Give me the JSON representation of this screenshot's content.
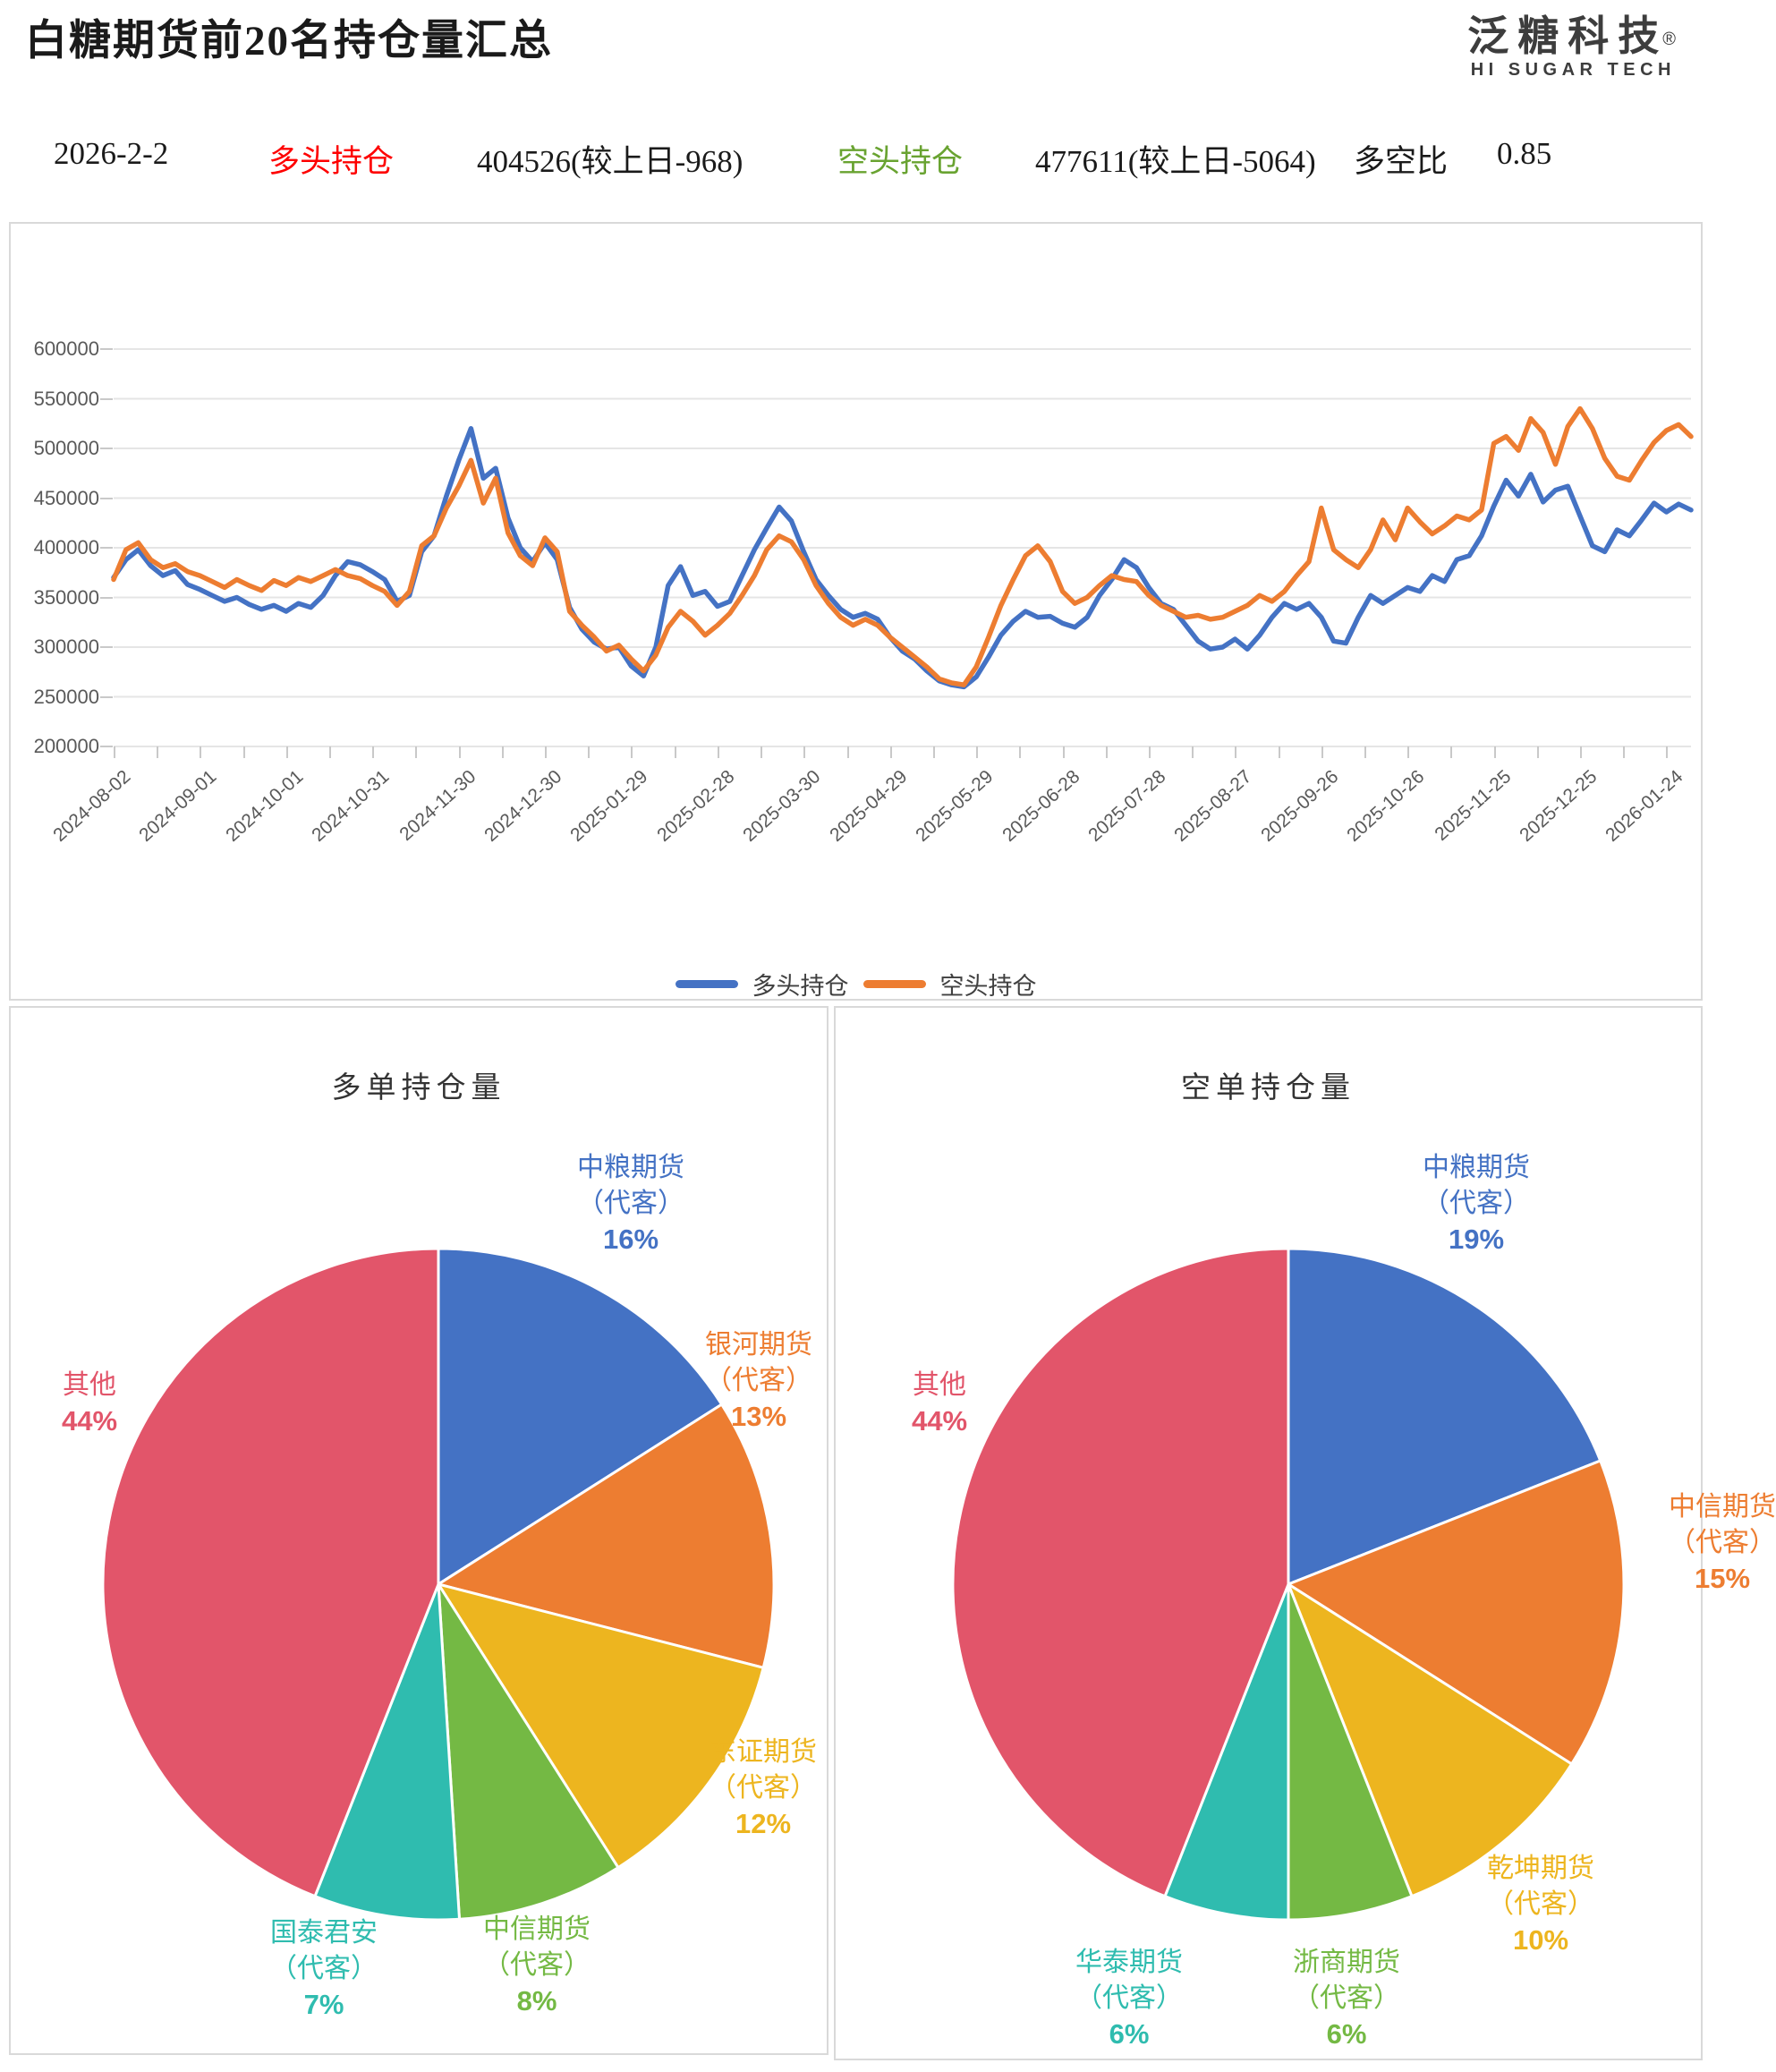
{
  "header": {
    "title": "白糖期货前20名持仓量汇总",
    "logo_cn": "泛糖科技",
    "logo_reg": "®",
    "logo_en": "HI SUGAR TECH"
  },
  "info_bar": {
    "date": "2026-2-2",
    "long_label": "多头持仓",
    "long_value": "404526(较上日-968)",
    "short_label": "空头持仓",
    "short_value": "477611(较上日-5064)",
    "ratio_label": "多空比",
    "ratio_value": "0.85"
  },
  "colors": {
    "blue": "#4472C4",
    "orange": "#ED7D31",
    "yellow": "#EDB51F",
    "green": "#74B944",
    "teal": "#2FBCAF",
    "red": "#E2556A",
    "grid": "#E5E5E5",
    "axis_text": "#595959",
    "panel_border": "#D9D9D9"
  },
  "chart_data": [
    {
      "type": "line",
      "ylim": [
        200000,
        600000
      ],
      "ytick_step": 50000,
      "grid": true,
      "legend_position": "bottom",
      "x_tick_labels": [
        "2024-08-02",
        "2024-09-01",
        "2024-10-01",
        "2024-10-31",
        "2024-11-30",
        "2024-12-30",
        "2025-01-29",
        "2025-02-28",
        "2025-03-30",
        "2025-04-29",
        "2025-05-29",
        "2025-06-28",
        "2025-07-28",
        "2025-08-27",
        "2025-09-26",
        "2025-10-26",
        "2025-11-25",
        "2025-12-25",
        "2026-01-24"
      ],
      "series": [
        {
          "name": "多头持仓",
          "color": "#4472C4",
          "values": [
            370000,
            388000,
            398000,
            382000,
            372000,
            377000,
            363000,
            358000,
            352000,
            346000,
            350000,
            343000,
            338000,
            342000,
            336000,
            344000,
            340000,
            352000,
            372000,
            386000,
            383000,
            376000,
            368000,
            346000,
            352000,
            396000,
            412000,
            452000,
            488000,
            520000,
            470000,
            480000,
            430000,
            400000,
            386000,
            405000,
            388000,
            340000,
            318000,
            305000,
            298000,
            300000,
            281000,
            271000,
            300000,
            362000,
            381000,
            352000,
            356000,
            341000,
            346000,
            372000,
            398000,
            420000,
            441000,
            427000,
            396000,
            368000,
            352000,
            338000,
            330000,
            334000,
            328000,
            310000,
            296000,
            288000,
            276000,
            266000,
            262000,
            260000,
            270000,
            290000,
            312000,
            326000,
            336000,
            330000,
            331000,
            324000,
            320000,
            330000,
            352000,
            368000,
            388000,
            380000,
            360000,
            344000,
            338000,
            322000,
            306000,
            298000,
            300000,
            308000,
            298000,
            312000,
            330000,
            344000,
            338000,
            344000,
            330000,
            306000,
            304000,
            330000,
            352000,
            344000,
            352000,
            360000,
            356000,
            372000,
            366000,
            388000,
            392000,
            412000,
            442000,
            468000,
            452000,
            474000,
            446000,
            458000,
            462000,
            432000,
            402000,
            396000,
            418000,
            412000,
            428000,
            445000,
            436000,
            444000,
            438000
          ]
        },
        {
          "name": "空头持仓",
          "color": "#ED7D31",
          "values": [
            368000,
            398000,
            405000,
            388000,
            380000,
            384000,
            376000,
            372000,
            366000,
            360000,
            368000,
            362000,
            357000,
            367000,
            362000,
            370000,
            366000,
            372000,
            378000,
            372000,
            369000,
            362000,
            356000,
            342000,
            356000,
            402000,
            412000,
            440000,
            462000,
            488000,
            445000,
            470000,
            415000,
            392000,
            382000,
            410000,
            396000,
            336000,
            322000,
            310000,
            296000,
            302000,
            288000,
            276000,
            292000,
            320000,
            336000,
            326000,
            312000,
            322000,
            334000,
            352000,
            372000,
            398000,
            412000,
            406000,
            388000,
            362000,
            344000,
            330000,
            322000,
            328000,
            322000,
            310000,
            300000,
            290000,
            280000,
            268000,
            264000,
            262000,
            280000,
            310000,
            342000,
            368000,
            392000,
            402000,
            386000,
            356000,
            344000,
            350000,
            362000,
            372000,
            368000,
            366000,
            352000,
            342000,
            336000,
            330000,
            332000,
            328000,
            330000,
            336000,
            342000,
            352000,
            346000,
            356000,
            372000,
            386000,
            440000,
            398000,
            388000,
            380000,
            398000,
            428000,
            408000,
            440000,
            426000,
            414000,
            422000,
            432000,
            428000,
            438000,
            505000,
            512000,
            498000,
            530000,
            516000,
            484000,
            522000,
            540000,
            520000,
            490000,
            472000,
            468000,
            488000,
            506000,
            518000,
            524000,
            512000
          ]
        }
      ]
    },
    {
      "type": "pie",
      "title": "多单持仓量",
      "slices": [
        {
          "label": "中粮期货",
          "sublabel": "（代客）",
          "pct": 16,
          "color": "#4472C4"
        },
        {
          "label": "银河期货",
          "sublabel": "（代客）",
          "pct": 13,
          "color": "#ED7D31"
        },
        {
          "label": "东证期货",
          "sublabel": "（代客）",
          "pct": 12,
          "color": "#EDB51F"
        },
        {
          "label": "中信期货",
          "sublabel": "（代客）",
          "pct": 8,
          "color": "#74B944"
        },
        {
          "label": "国泰君安",
          "sublabel": "（代客）",
          "pct": 7,
          "color": "#2FBCAF"
        },
        {
          "label": "其他",
          "sublabel": "",
          "pct": 44,
          "color": "#E2556A"
        }
      ]
    },
    {
      "type": "pie",
      "title": "空单持仓量",
      "slices": [
        {
          "label": "中粮期货",
          "sublabel": "（代客）",
          "pct": 19,
          "color": "#4472C4"
        },
        {
          "label": "中信期货",
          "sublabel": "（代客）",
          "pct": 15,
          "color": "#ED7D31"
        },
        {
          "label": "乾坤期货",
          "sublabel": "（代客）",
          "pct": 10,
          "color": "#EDB51F"
        },
        {
          "label": "浙商期货",
          "sublabel": "（代客）",
          "pct": 6,
          "color": "#74B944"
        },
        {
          "label": "华泰期货",
          "sublabel": "（代客）",
          "pct": 6,
          "color": "#2FBCAF"
        },
        {
          "label": "其他",
          "sublabel": "",
          "pct": 44,
          "color": "#E2556A"
        }
      ]
    }
  ]
}
